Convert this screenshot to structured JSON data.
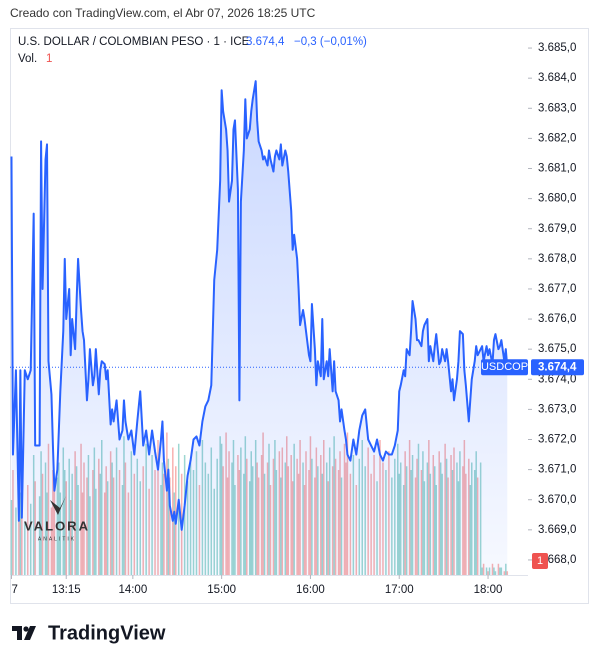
{
  "chart_data": {
    "type": "line",
    "caption": "Creado con TradingView.com, el Abr 07, 2026 18:25 UTC",
    "title": "U.S. DOLLAR / COLOMBIAN PESO · 1 · ICE",
    "last_value_label": "3.674,4",
    "change": "−0,3 (−0,01%)",
    "symbol": "USDCOP",
    "volume_label": "Vol.",
    "watermark": "VALORA",
    "watermark_sub": "ANALITIK",
    "footer_logo": "TradingView",
    "color": "#2962ff",
    "grid": false,
    "xlim": [
      757,
      1107
    ],
    "xticks": [
      {
        "value": 758,
        "label": "7"
      },
      {
        "value": 795,
        "label": "13:15"
      },
      {
        "value": 840,
        "label": "14:00"
      },
      {
        "value": 900,
        "label": "15:00"
      },
      {
        "value": 960,
        "label": "16:00"
      },
      {
        "value": 1020,
        "label": "17:00"
      },
      {
        "value": 1080,
        "label": "18:00"
      }
    ],
    "ylim": [
      3667.5,
      3685.6
    ],
    "yticks": [
      {
        "value": 3668,
        "label": "3.668,0"
      },
      {
        "value": 3669,
        "label": "3.669,0"
      },
      {
        "value": 3670,
        "label": "3.670,0"
      },
      {
        "value": 3671,
        "label": "3.671,0"
      },
      {
        "value": 3672,
        "label": "3.672,0"
      },
      {
        "value": 3673,
        "label": "3.673,0"
      },
      {
        "value": 3674,
        "label": "3.674,0"
      },
      {
        "value": 3675,
        "label": "3.675,0"
      },
      {
        "value": 3676,
        "label": "3.676,0"
      },
      {
        "value": 3677,
        "label": "3.677,0"
      },
      {
        "value": 3678,
        "label": "3.678,0"
      },
      {
        "value": 3679,
        "label": "3.679,0"
      },
      {
        "value": 3680,
        "label": "3.680,0"
      },
      {
        "value": 3681,
        "label": "3.681,0"
      },
      {
        "value": 3682,
        "label": "3.682,0"
      },
      {
        "value": 3683,
        "label": "3.683,0"
      },
      {
        "value": 3684,
        "label": "3.684,0"
      },
      {
        "value": 3685,
        "label": "3.685,0"
      }
    ],
    "x": [
      758,
      759,
      761,
      763,
      764,
      765,
      767,
      769,
      771,
      773,
      774,
      777,
      778,
      779,
      781,
      782,
      783,
      785,
      786,
      787,
      789,
      790,
      791,
      793,
      794,
      795,
      797,
      798,
      799,
      801,
      802,
      803,
      805,
      806,
      807,
      809,
      810,
      811,
      813,
      814,
      815,
      817,
      818,
      819,
      821,
      822,
      823,
      825,
      826,
      827,
      829,
      831,
      833,
      834,
      835,
      837,
      839,
      841,
      843,
      845,
      847,
      849,
      851,
      853,
      855,
      857,
      859,
      860,
      861,
      863,
      864,
      865,
      867,
      868,
      869,
      871,
      873,
      875,
      877,
      879,
      881,
      883,
      885,
      887,
      889,
      891,
      893,
      895,
      897,
      899,
      900,
      901,
      903,
      904,
      905,
      907,
      908,
      909,
      911,
      912,
      913,
      915,
      916,
      917,
      919,
      920,
      921,
      923,
      924,
      925,
      927,
      928,
      929,
      931,
      932,
      933,
      935,
      936,
      937,
      939,
      940,
      941,
      943,
      944,
      945,
      947,
      948,
      949,
      951,
      952,
      953,
      955,
      956,
      957,
      959,
      960,
      961,
      963,
      964,
      965,
      967,
      968,
      969,
      971,
      972,
      973,
      975,
      976,
      977,
      979,
      980,
      981,
      983,
      984,
      985,
      987,
      989,
      991,
      993,
      995,
      997,
      999,
      1001,
      1003,
      1005,
      1007,
      1009,
      1011,
      1013,
      1015,
      1017,
      1019,
      1020,
      1021,
      1023,
      1024,
      1025,
      1027,
      1028,
      1029,
      1031,
      1032,
      1033,
      1035,
      1036,
      1037,
      1039,
      1040,
      1041,
      1043,
      1044,
      1045,
      1047,
      1048,
      1049,
      1051,
      1052,
      1053,
      1055,
      1056,
      1057,
      1059,
      1060,
      1061,
      1063,
      1064,
      1065,
      1067,
      1068,
      1069,
      1071,
      1072,
      1073,
      1075,
      1076,
      1077,
      1079,
      1080,
      1081,
      1083,
      1084,
      1085,
      1087,
      1088,
      1089,
      1091,
      1092,
      1093
    ],
    "values": [
      3681.4,
      3671.5,
      3674.3,
      3669.3,
      3674.3,
      3669.4,
      3674.3,
      3674.0,
      3674.3,
      3679.5,
      3671.8,
      3671.8,
      3681.9,
      3677.0,
      3681.3,
      3681.8,
      3674.6,
      3673.5,
      3671.8,
      3670.3,
      3671.0,
      3672.3,
      3673.6,
      3675.6,
      3678.0,
      3676.0,
      3677.0,
      3674.8,
      3676.0,
      3675.0,
      3676.6,
      3678.0,
      3676.3,
      3675.6,
      3675.3,
      3673.3,
      3674.0,
      3675.0,
      3673.8,
      3674.1,
      3675.0,
      3673.5,
      3674.3,
      3674.6,
      3674.5,
      3674.0,
      3674.3,
      3672.5,
      3673.0,
      3672.6,
      3673.3,
      3672.0,
      3672.3,
      3673.3,
      3672.6,
      3672.0,
      3672.3,
      3671.5,
      3672.6,
      3673.6,
      3671.8,
      3672.3,
      3671.5,
      3672.3,
      3671.6,
      3671.0,
      3672.0,
      3672.6,
      3671.3,
      3670.3,
      3671.0,
      3669.8,
      3669.3,
      3669.6,
      3669.2,
      3670.0,
      3669.0,
      3669.8,
      3670.8,
      3671.3,
      3672.0,
      3672.1,
      3671.8,
      3672.6,
      3673.1,
      3673.3,
      3673.8,
      3677.3,
      3678.3,
      3680.6,
      3683.6,
      3682.9,
      3682.3,
      3681.6,
      3679.9,
      3680.6,
      3682.3,
      3682.6,
      3680.3,
      3673.3,
      3679.9,
      3681.6,
      3683.3,
      3682.0,
      3682.3,
      3682.9,
      3683.3,
      3683.9,
      3682.6,
      3681.9,
      3681.6,
      3681.3,
      3681.4,
      3681.1,
      3681.6,
      3681.3,
      3680.9,
      3681.4,
      3681.6,
      3681.3,
      3681.8,
      3681.1,
      3681.6,
      3681.4,
      3680.9,
      3679.6,
      3678.3,
      3678.8,
      3678.0,
      3677.0,
      3675.8,
      3676.3,
      3676.0,
      3675.6,
      3674.8,
      3674.6,
      3676.5,
      3675.0,
      3673.8,
      3674.6,
      3674.1,
      3676.0,
      3674.0,
      3674.6,
      3674.1,
      3675.0,
      3673.6,
      3674.6,
      3673.6,
      3673.3,
      3672.6,
      3673.0,
      3672.3,
      3672.0,
      3671.5,
      3671.3,
      3672.0,
      3671.5,
      3672.3,
      3672.8,
      3673.0,
      3672.0,
      3671.8,
      3671.6,
      3672.0,
      3671.5,
      3671.3,
      3671.6,
      3671.5,
      3671.5,
      3671.8,
      3672.3,
      3673.6,
      3673.8,
      3674.3,
      3674.1,
      3675.0,
      3674.8,
      3675.6,
      3676.6,
      3676.0,
      3675.3,
      3675.3,
      3675.1,
      3675.6,
      3675.8,
      3676.0,
      3674.6,
      3675.1,
      3674.6,
      3675.1,
      3675.5,
      3674.5,
      3674.6,
      3675.0,
      3674.6,
      3675.0,
      3674.6,
      3673.6,
      3674.0,
      3673.3,
      3674.0,
      3674.6,
      3675.6,
      3675.5,
      3674.3,
      3673.8,
      3672.6,
      3673.3,
      3674.0,
      3674.6,
      3675.1,
      3674.8,
      3675.0,
      3675.1,
      3674.6,
      3675.1,
      3674.8,
      3675.0,
      3674.5,
      3675.3,
      3675.5,
      3675.0,
      3675.1,
      3675.3,
      3674.6,
      3675.0,
      3674.4
    ],
    "volume": {
      "up_color": "rgba(38,166,154,0.45)",
      "down_color": "rgba(239,83,80,0.45)",
      "values": [
        20,
        28,
        18,
        30,
        22,
        26,
        14,
        24,
        19,
        32,
        25,
        21,
        33,
        27,
        30,
        22,
        35,
        18,
        28,
        24,
        26,
        30,
        22,
        34,
        28,
        25,
        31,
        20,
        27,
        33,
        29,
        24,
        35,
        22,
        30,
        26,
        32,
        21,
        28,
        34,
        23,
        31,
        27,
        36,
        22,
        29,
        25,
        33,
        30,
        26,
        34,
        28,
        24,
        37,
        30,
        22,
        33,
        27,
        31,
        25,
        29,
        35,
        23,
        32,
        28,
        36,
        24,
        30,
        27,
        38,
        31,
        26,
        34,
        22,
        29,
        35,
        27,
        32,
        25,
        30,
        28,
        33,
        24,
        36,
        30,
        27,
        34,
        23,
        31,
        37,
        35,
        29,
        38,
        26,
        33,
        30,
        36,
        24,
        32,
        28,
        34,
        27,
        37,
        31,
        25,
        33,
        29,
        36,
        30,
        26,
        32,
        38,
        27,
        30,
        35,
        24,
        31,
        36,
        28,
        33,
        26,
        34,
        30,
        37,
        29,
        32,
        25,
        35,
        31,
        27,
        36,
        30,
        24,
        33,
        28,
        37,
        31,
        26,
        34,
        29,
        32,
        27,
        36,
        30,
        25,
        34,
        29,
        37,
        31,
        28,
        33,
        26,
        35,
        30,
        38,
        27,
        32,
        24,
        31,
        36,
        29,
        34,
        27,
        32,
        25,
        36,
        30,
        28,
        33,
        26,
        31,
        35,
        27,
        30,
        24,
        33,
        29,
        36,
        28,
        32,
        26,
        31,
        35,
        28,
        33,
        25,
        30,
        36,
        27,
        32,
        29,
        24,
        33,
        30,
        27,
        35,
        31,
        26,
        32,
        28,
        34,
        30,
        25,
        33,
        29,
        36,
        27,
        31,
        24,
        30,
        28,
        33,
        26,
        30,
        2,
        3,
        2,
        1,
        2,
        3,
        2,
        1,
        3,
        2,
        2,
        1,
        3,
        1
      ]
    }
  }
}
